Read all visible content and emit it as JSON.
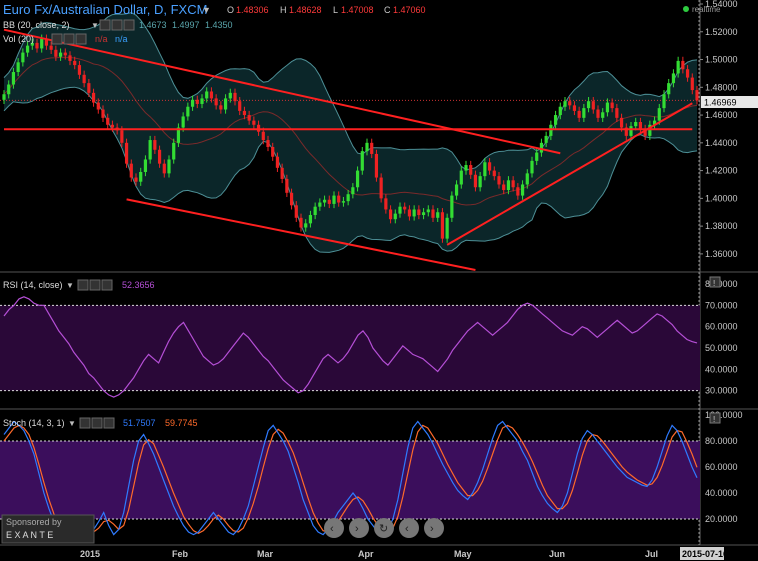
{
  "header": {
    "title": "Euro Fx/Australian Dollar, D, FXCM",
    "ohlc": [
      {
        "key": "O",
        "value": "1.48306"
      },
      {
        "key": "H",
        "value": "1.48628"
      },
      {
        "key": "L",
        "value": "1.47008"
      },
      {
        "key": "C",
        "value": "1.47060"
      }
    ],
    "realtime_label": "realtime"
  },
  "indicators": {
    "bb": {
      "label": "BB (20, close, 2)",
      "values": [
        "1.4673",
        "1.4997",
        "1.4350"
      ]
    },
    "vol": {
      "label": "Vol (20)",
      "values": [
        "n/a",
        "n/a"
      ]
    },
    "rsi": {
      "label": "RSI (14, close)",
      "value": "52.3656"
    },
    "stoch": {
      "label": "Stoch (14, 3, 1)",
      "values": [
        "51.7507",
        "59.7745"
      ]
    }
  },
  "price_tag": "1.46969",
  "date_tag": "2015-07-16",
  "sponsor": {
    "line1": "Sponsored by",
    "line2": "E X A N T E"
  },
  "nav_icons": [
    "arrow-left-icon",
    "arrow-right-icon",
    "refresh-icon",
    "chevron-left-icon",
    "chevron-right-icon"
  ],
  "colors": {
    "background": "#000000",
    "bull": "#33dd33",
    "bear": "#ee2222",
    "bb_fill": "#0c2a2e",
    "bb_line": "#4d8f96",
    "trendline": "#ff2020",
    "rsi_line": "#b54fd6",
    "rsi_fill": "#2a0838",
    "stoch_k": "#2f7bff",
    "stoch_d": "#ff6a2a",
    "stoch_fill": "#3b0e5c",
    "title": "#4aa0ff"
  },
  "chart_data": [
    {
      "type": "candlestick",
      "name": "price",
      "x_ticks": [
        "2015",
        "Feb",
        "Mar",
        "Apr",
        "May",
        "Jun",
        "Jul"
      ],
      "y_ticks": [
        "1.54000",
        "1.52000",
        "1.50000",
        "1.48000",
        "1.46000",
        "1.44000",
        "1.42000",
        "1.40000",
        "1.38000",
        "1.36000"
      ],
      "ylim": [
        1.3484,
        1.54
      ],
      "close": [
        1.475,
        1.482,
        1.491,
        1.498,
        1.505,
        1.51,
        1.512,
        1.508,
        1.515,
        1.51,
        1.507,
        1.502,
        1.505,
        1.503,
        1.499,
        1.496,
        1.489,
        1.483,
        1.476,
        1.469,
        1.464,
        1.458,
        1.453,
        1.451,
        1.449,
        1.44,
        1.425,
        1.415,
        1.412,
        1.419,
        1.428,
        1.442,
        1.435,
        1.425,
        1.418,
        1.428,
        1.44,
        1.451,
        1.459,
        1.466,
        1.471,
        1.468,
        1.472,
        1.477,
        1.472,
        1.467,
        1.464,
        1.472,
        1.476,
        1.47,
        1.463,
        1.46,
        1.456,
        1.453,
        1.448,
        1.442,
        1.437,
        1.43,
        1.422,
        1.414,
        1.404,
        1.395,
        1.386,
        1.379,
        1.382,
        1.388,
        1.394,
        1.397,
        1.399,
        1.396,
        1.402,
        1.397,
        1.398,
        1.403,
        1.408,
        1.42,
        1.434,
        1.44,
        1.432,
        1.415,
        1.4,
        1.392,
        1.385,
        1.389,
        1.394,
        1.392,
        1.387,
        1.392,
        1.388,
        1.39,
        1.392,
        1.386,
        1.39,
        1.371,
        1.386,
        1.402,
        1.41,
        1.42,
        1.424,
        1.417,
        1.408,
        1.416,
        1.426,
        1.42,
        1.416,
        1.41,
        1.406,
        1.413,
        1.408,
        1.402,
        1.41,
        1.418,
        1.427,
        1.433,
        1.44,
        1.445,
        1.453,
        1.46,
        1.466,
        1.47,
        1.467,
        1.463,
        1.458,
        1.465,
        1.47,
        1.464,
        1.458,
        1.462,
        1.469,
        1.465,
        1.458,
        1.451,
        1.445,
        1.452,
        1.455,
        1.45,
        1.445,
        1.453,
        1.456,
        1.465,
        1.475,
        1.483,
        1.49,
        1.499,
        1.493,
        1.487,
        1.478,
        1.4706
      ]
    },
    {
      "type": "line",
      "name": "RSI (14, close)",
      "y_ticks": [
        "80.0000",
        "70.0000",
        "60.0000",
        "50.0000",
        "40.0000",
        "30.0000"
      ],
      "ylim": [
        21.4,
        80
      ],
      "levels": [
        70,
        30
      ],
      "values": [
        65,
        68,
        70,
        73,
        74,
        73,
        71,
        70,
        70,
        66,
        62,
        58,
        55,
        52,
        48,
        45,
        42,
        38,
        36,
        33,
        30,
        28,
        27,
        28,
        30,
        33,
        36,
        40,
        44,
        47,
        45,
        43,
        48,
        53,
        57,
        60,
        62,
        58,
        54,
        50,
        46,
        44,
        42,
        43,
        45,
        48,
        51,
        54,
        57,
        55,
        52,
        49,
        46,
        44,
        41,
        38,
        35,
        33,
        31,
        29,
        30,
        33,
        37,
        41,
        45,
        47,
        45,
        43,
        45,
        48,
        52,
        56,
        58,
        55,
        50,
        47,
        44,
        42,
        45,
        48,
        51,
        49,
        47,
        46,
        45,
        43,
        41,
        39,
        42,
        45,
        49,
        52,
        55,
        58,
        60,
        62,
        60,
        58,
        56,
        58,
        60,
        62,
        65,
        68,
        70,
        71,
        70,
        68,
        66,
        64,
        62,
        60,
        58,
        57,
        56,
        58,
        60,
        59,
        57,
        55,
        57,
        59,
        61,
        63,
        61,
        59,
        57,
        58,
        60,
        62,
        64,
        66,
        65,
        63,
        61,
        58,
        56,
        54,
        53,
        52.3656
      ]
    },
    {
      "type": "line",
      "name": "Stoch (14, 3, 1)",
      "y_ticks": [
        "100.0000",
        "80.0000",
        "60.0000",
        "40.0000",
        "20.0000"
      ],
      "ylim": [
        0,
        100
      ],
      "levels": [
        80,
        20
      ],
      "series": [
        {
          "name": "%K",
          "values": [
            85,
            90,
            95,
            92,
            88,
            80,
            70,
            55,
            40,
            28,
            18,
            10,
            8,
            12,
            20,
            15,
            10,
            8,
            12,
            18,
            25,
            15,
            8,
            12,
            25,
            45,
            65,
            80,
            85,
            78,
            70,
            60,
            50,
            40,
            30,
            22,
            15,
            10,
            8,
            10,
            15,
            20,
            25,
            20,
            15,
            10,
            8,
            12,
            20,
            30,
            45,
            60,
            75,
            88,
            92,
            86,
            80,
            72,
            60,
            48,
            35,
            25,
            15,
            10,
            8,
            12,
            18,
            25,
            30,
            35,
            40,
            35,
            28,
            20,
            15,
            10,
            8,
            12,
            20,
            35,
            55,
            75,
            90,
            95,
            90,
            85,
            78,
            70,
            62,
            55,
            48,
            42,
            38,
            35,
            40,
            48,
            58,
            70,
            82,
            92,
            95,
            90,
            85,
            80,
            72,
            65,
            55,
            45,
            38,
            32,
            28,
            25,
            30,
            40,
            55,
            70,
            82,
            88,
            85,
            80,
            75,
            70,
            65,
            60,
            56,
            52,
            50,
            48,
            46,
            45,
            50,
            60,
            72,
            84,
            92,
            88,
            80,
            70,
            60,
            51.7507
          ]
        },
        {
          "name": "%D",
          "values": [
            80,
            85,
            90,
            92,
            90,
            85,
            75,
            62,
            48,
            35,
            24,
            15,
            10,
            10,
            14,
            16,
            14,
            11,
            10,
            13,
            18,
            19,
            16,
            12,
            15,
            27,
            45,
            63,
            77,
            81,
            78,
            69,
            60,
            50,
            40,
            31,
            22,
            16,
            11,
            9,
            11,
            15,
            20,
            23,
            20,
            15,
            11,
            10,
            13,
            21,
            32,
            45,
            60,
            74,
            85,
            89,
            86,
            79,
            71,
            60,
            48,
            36,
            25,
            17,
            11,
            10,
            13,
            18,
            24,
            30,
            35,
            37,
            34,
            28,
            21,
            15,
            11,
            10,
            13,
            22,
            37,
            55,
            73,
            87,
            92,
            90,
            84,
            78,
            70,
            62,
            55,
            48,
            43,
            38,
            38,
            42,
            49,
            59,
            70,
            81,
            90,
            92,
            90,
            85,
            79,
            72,
            64,
            55,
            46,
            38,
            33,
            28,
            28,
            32,
            42,
            55,
            69,
            80,
            85,
            84,
            80,
            75,
            70,
            65,
            60,
            56,
            53,
            50,
            48,
            46,
            47,
            52,
            61,
            72,
            83,
            88,
            87,
            79,
            70,
            59.7745
          ]
        }
      ]
    }
  ]
}
